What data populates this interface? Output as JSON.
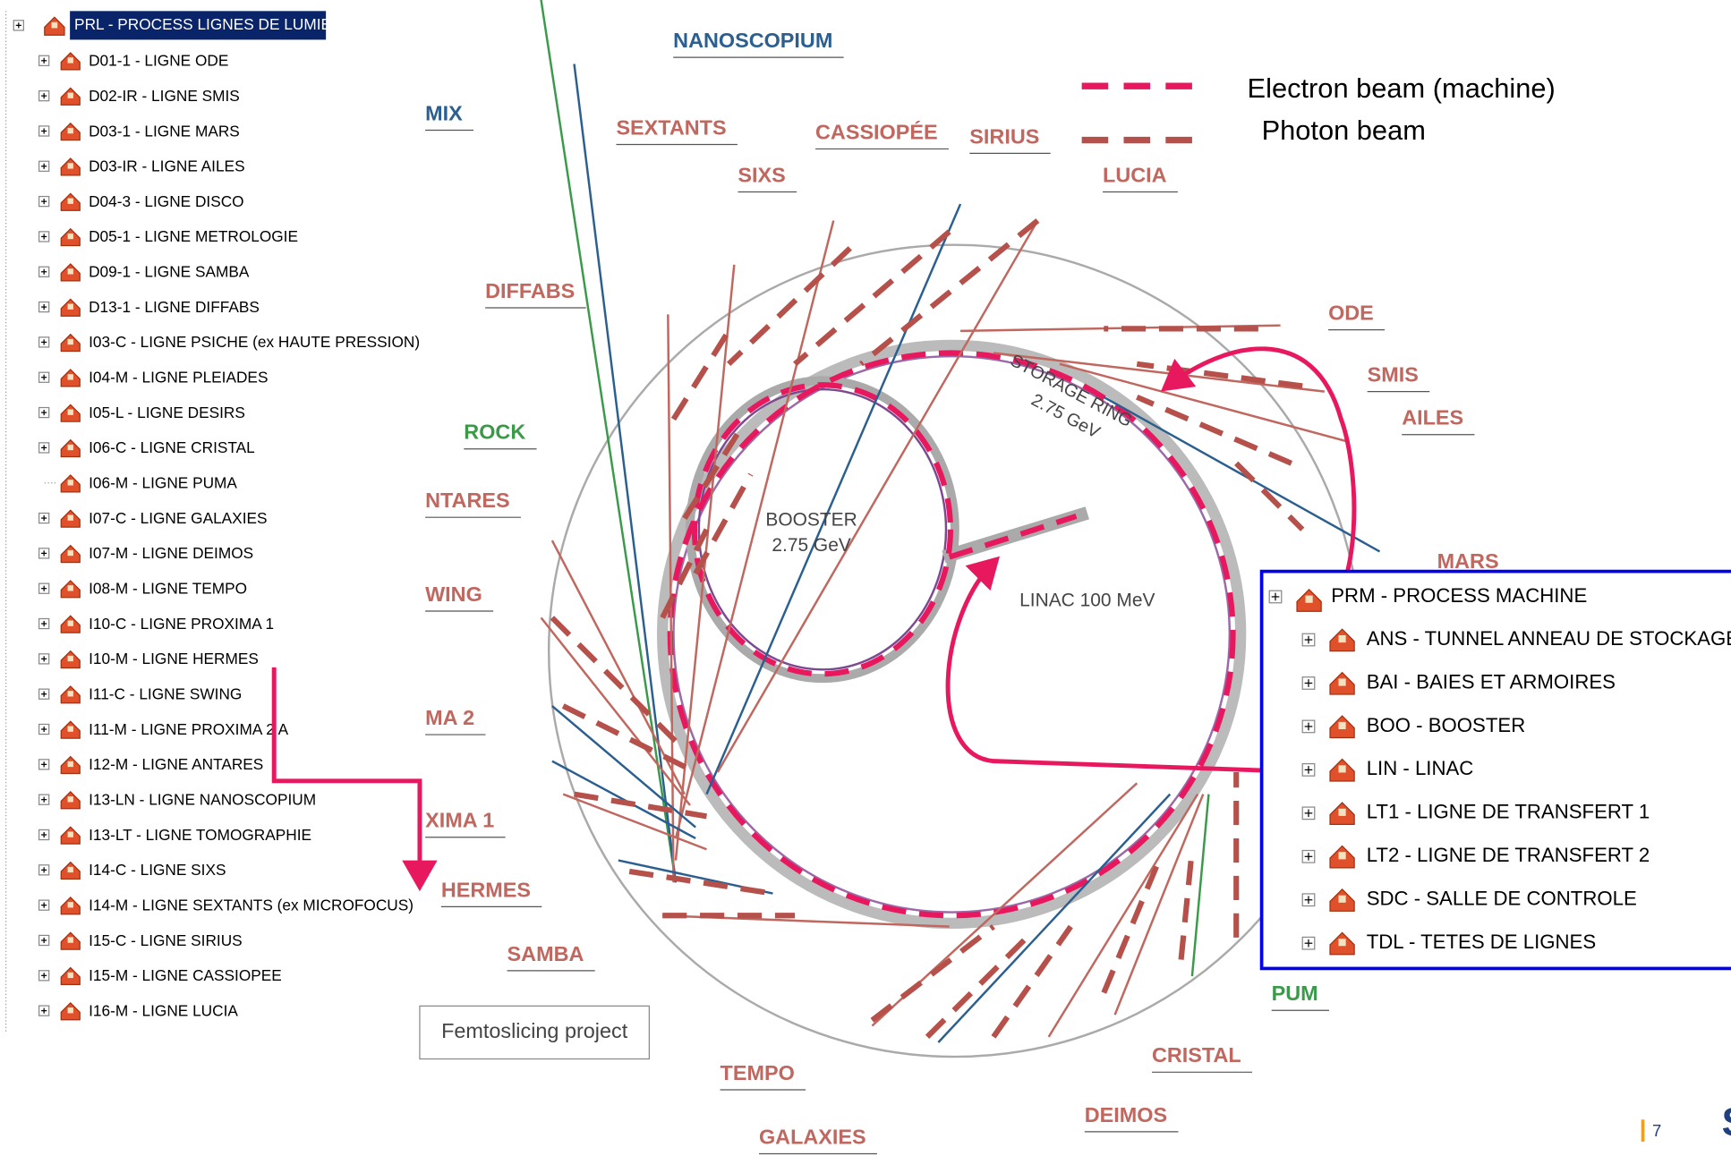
{
  "left_tree": {
    "root": "PRL - PROCESS LIGNES DE LUMIERE",
    "items": [
      "D01-1 - LIGNE ODE",
      "D02-IR - LIGNE SMIS",
      "D03-1 - LIGNE MARS",
      "D03-IR - LIGNE AILES",
      "D04-3 - LIGNE DISCO",
      "D05-1 - LIGNE METROLOGIE",
      "D09-1 - LIGNE SAMBA",
      "D13-1 - LIGNE DIFFABS",
      "I03-C - LIGNE PSICHE (ex HAUTE PRESSION)",
      "I04-M - LIGNE PLEIADES",
      "I05-L - LIGNE DESIRS",
      "I06-C - LIGNE CRISTAL",
      "I06-M - LIGNE PUMA",
      "I07-C - LIGNE GALAXIES",
      "I07-M - LIGNE DEIMOS",
      "I08-M - LIGNE TEMPO",
      "I10-C - LIGNE PROXIMA 1",
      "I10-M - LIGNE HERMES",
      "I11-C - LIGNE SWING",
      "I11-M - LIGNE PROXIMA 2 A",
      "I12-M - LIGNE ANTARES",
      "I13-LN - LIGNE NANOSCOPIUM",
      "I13-LT - LIGNE TOMOGRAPHIE",
      "I14-C - LIGNE SIXS",
      "I14-M - LIGNE SEXTANTS (ex MICROFOCUS)",
      "I15-C - LIGNE SIRIUS",
      "I15-M - LIGNE CASSIOPEE",
      "I16-M - LIGNE LUCIA"
    ]
  },
  "legend": {
    "items": [
      "Electron beam (machine)",
      "Photon beam"
    ]
  },
  "diagram": {
    "storage_ring": [
      "STORAGE RING",
      "2.75 GeV"
    ],
    "booster": [
      "BOOSTER",
      "2.75 GeV"
    ],
    "linac": "LINAC 100 MeV",
    "beamlines": [
      "NANOSCOPIUM",
      "MIX",
      "SEXTANTS",
      "CASSIOPÉE",
      "SIRIUS",
      "SIXS",
      "LUCIA",
      "DIFFABS",
      "ODE",
      "SMIS",
      "AILES",
      "ROCK",
      "NTARES",
      "MARS",
      "WING",
      "MA 2",
      "XIMA 1",
      "HERMES",
      "SAMBA",
      "PUM",
      "CRISTAL",
      "TEMPO",
      "DEIMOS",
      "GALAXIES"
    ],
    "project": "Femtoslicing project"
  },
  "right_tree": {
    "root": "PRM - PROCESS MACHINE",
    "items": [
      "ANS - TUNNEL ANNEAU DE STOCKAGE",
      "BAI - BAIES ET ARMOIRES",
      "BOO - BOOSTER",
      "LIN - LINAC",
      "LT1 - LIGNE DE TRANSFERT 1",
      "LT2 - LIGNE DE TRANSFERT 2",
      "SDC - SALLE DE CONTROLE",
      "TDL - TETES DE LIGNES"
    ]
  },
  "page_number": "7",
  "logo": "S"
}
